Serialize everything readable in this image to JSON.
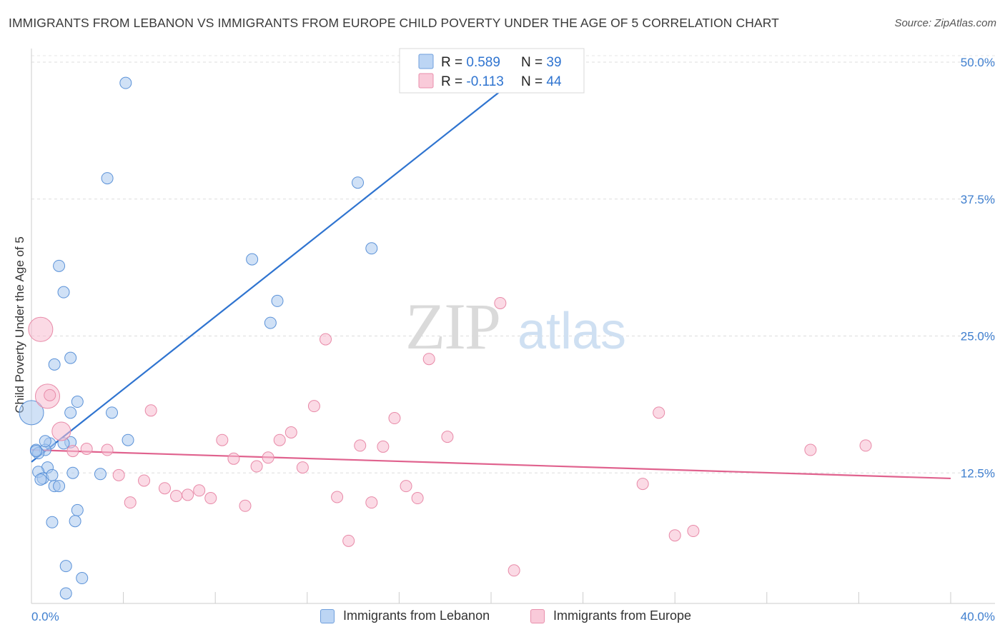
{
  "title": "IMMIGRANTS FROM LEBANON VS IMMIGRANTS FROM EUROPE CHILD POVERTY UNDER THE AGE OF 5 CORRELATION CHART",
  "source": "Source: ZipAtlas.com",
  "watermark": {
    "zip": "ZIP",
    "atlas": "atlas"
  },
  "legend_top": [
    {
      "r_label": "R = ",
      "r_value": "0.589",
      "n_label": "N = ",
      "n_value": "39"
    },
    {
      "r_label": "R = ",
      "r_value": "-0.113",
      "n_label": "N = ",
      "n_value": "44"
    }
  ],
  "chart_data": {
    "type": "scatter",
    "title": "IMMIGRANTS FROM LEBANON VS IMMIGRANTS FROM EUROPE CHILD POVERTY UNDER THE AGE OF 5 CORRELATION CHART",
    "xlabel": "",
    "ylabel": "Child Poverty Under the Age of 5",
    "xlim": [
      0,
      40
    ],
    "ylim": [
      0,
      50
    ],
    "x_tick_labels": [
      "0.0%",
      "40.0%"
    ],
    "y_ticks": [
      12.5,
      25.0,
      37.5,
      50.0
    ],
    "y_tick_labels": [
      "12.5%",
      "25.0%",
      "37.5%",
      "50.0%"
    ],
    "grid": "horizontal dashed",
    "series": [
      {
        "name": "Immigrants from Lebanon",
        "color": "#a9c8ef",
        "stroke": "#5b92d8",
        "line_color": "#2f74d0",
        "r": 0.589,
        "n": 39,
        "trend": {
          "x": [
            0,
            20.8
          ],
          "y": [
            13.5,
            48.0
          ]
        },
        "points": [
          [
            4.1,
            48.1
          ],
          [
            3.3,
            39.4
          ],
          [
            14.2,
            39.0
          ],
          [
            14.8,
            33.0
          ],
          [
            9.6,
            32.0
          ],
          [
            1.2,
            31.4
          ],
          [
            1.4,
            29.0
          ],
          [
            10.7,
            28.2
          ],
          [
            10.4,
            26.2
          ],
          [
            1.7,
            23.0
          ],
          [
            1.0,
            22.4
          ],
          [
            2.0,
            19.0
          ],
          [
            0.0,
            18.0
          ],
          [
            1.7,
            18.0
          ],
          [
            3.5,
            18.0
          ],
          [
            1.7,
            15.3
          ],
          [
            0.8,
            15.2
          ],
          [
            1.4,
            15.2
          ],
          [
            4.2,
            15.5
          ],
          [
            0.2,
            14.6
          ],
          [
            0.6,
            14.6
          ],
          [
            0.3,
            14.3
          ],
          [
            0.7,
            13.0
          ],
          [
            0.3,
            12.6
          ],
          [
            1.8,
            12.5
          ],
          [
            3.0,
            12.4
          ],
          [
            0.5,
            12.0
          ],
          [
            0.9,
            12.3
          ],
          [
            0.4,
            11.9
          ],
          [
            1.0,
            11.3
          ],
          [
            1.2,
            11.3
          ],
          [
            2.0,
            9.1
          ],
          [
            0.9,
            8.0
          ],
          [
            1.9,
            8.1
          ],
          [
            1.5,
            4.0
          ],
          [
            2.2,
            2.9
          ],
          [
            1.5,
            1.5
          ],
          [
            0.2,
            14.5
          ],
          [
            0.6,
            15.4
          ]
        ]
      },
      {
        "name": "Immigrants from Europe",
        "color": "#f7bcd0",
        "stroke": "#e88aa8",
        "line_color": "#e0628e",
        "r": -0.113,
        "n": 44,
        "trend": {
          "x": [
            0,
            40
          ],
          "y": [
            14.6,
            12.0
          ]
        },
        "points": [
          [
            0.4,
            25.6
          ],
          [
            0.7,
            19.5
          ],
          [
            1.3,
            16.3
          ],
          [
            1.8,
            14.5
          ],
          [
            2.4,
            14.7
          ],
          [
            3.3,
            14.6
          ],
          [
            5.2,
            18.2
          ],
          [
            3.8,
            12.3
          ],
          [
            4.9,
            11.8
          ],
          [
            4.3,
            9.8
          ],
          [
            5.8,
            11.1
          ],
          [
            6.3,
            10.4
          ],
          [
            6.8,
            10.5
          ],
          [
            7.3,
            10.9
          ],
          [
            7.8,
            10.2
          ],
          [
            8.3,
            15.5
          ],
          [
            8.8,
            13.8
          ],
          [
            9.3,
            9.5
          ],
          [
            9.8,
            13.1
          ],
          [
            10.3,
            13.9
          ],
          [
            10.8,
            15.5
          ],
          [
            11.3,
            16.2
          ],
          [
            11.8,
            13.0
          ],
          [
            12.3,
            18.6
          ],
          [
            12.8,
            24.7
          ],
          [
            13.3,
            10.3
          ],
          [
            13.8,
            6.3
          ],
          [
            14.3,
            15.0
          ],
          [
            14.8,
            9.8
          ],
          [
            15.3,
            14.9
          ],
          [
            15.8,
            17.5
          ],
          [
            16.3,
            11.3
          ],
          [
            16.8,
            10.2
          ],
          [
            17.3,
            22.9
          ],
          [
            18.1,
            15.8
          ],
          [
            20.4,
            28.0
          ],
          [
            21.0,
            3.6
          ],
          [
            26.6,
            11.5
          ],
          [
            27.3,
            18.0
          ],
          [
            28.0,
            6.8
          ],
          [
            28.8,
            7.2
          ],
          [
            33.9,
            14.6
          ],
          [
            36.3,
            15.0
          ],
          [
            0.8,
            19.6
          ]
        ]
      }
    ]
  }
}
